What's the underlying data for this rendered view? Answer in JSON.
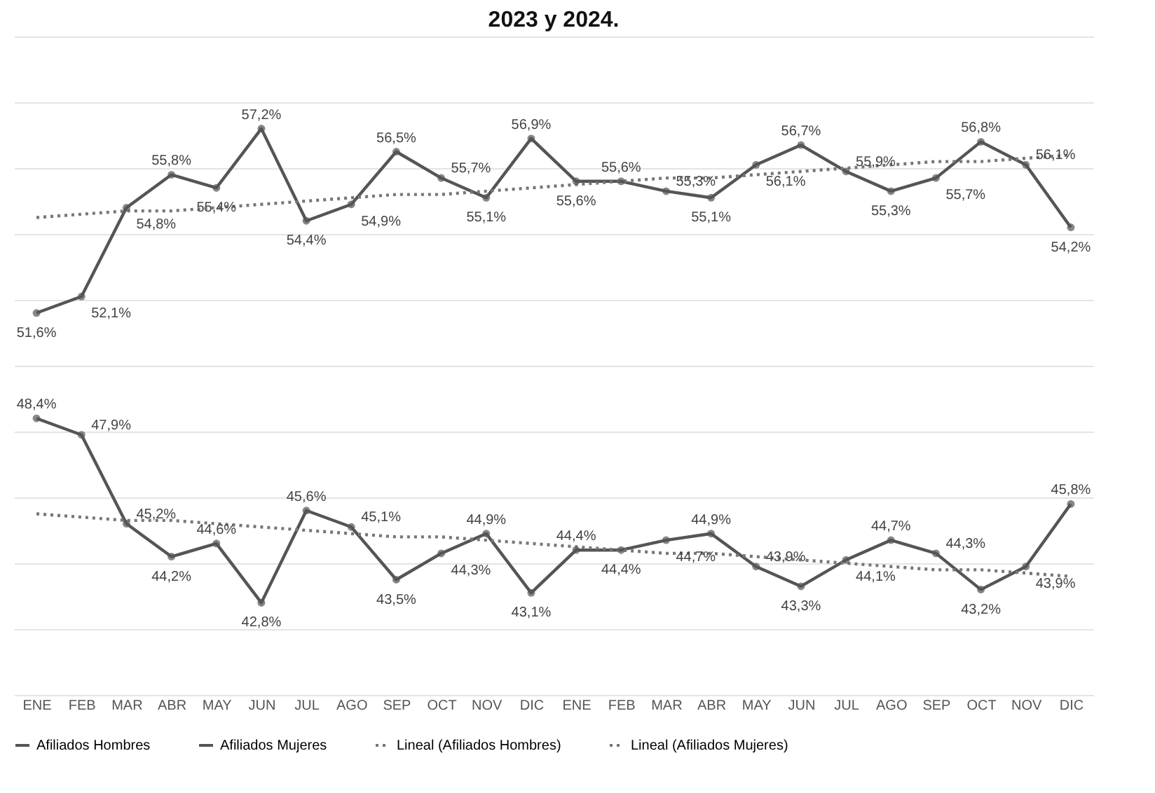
{
  "chart_data": {
    "type": "line",
    "title": "2023 y 2024.",
    "categories": [
      "ENE",
      "FEB",
      "MAR",
      "ABR",
      "MAY",
      "JUN",
      "JUL",
      "AGO",
      "SEP",
      "OCT",
      "NOV",
      "DIC",
      "ENE",
      "FEB",
      "MAR",
      "ABR",
      "MAY",
      "JUN",
      "JUL",
      "AGO",
      "SEP",
      "OCT",
      "NOV",
      "DIC"
    ],
    "series": [
      {
        "name": "Afiliados Hombres",
        "color": "#555555",
        "marker": "circle",
        "line_style": "solid",
        "values": [
          51.6,
          52.1,
          54.8,
          55.8,
          55.4,
          57.2,
          54.4,
          54.9,
          56.5,
          55.7,
          55.1,
          56.9,
          55.6,
          55.6,
          55.3,
          55.1,
          56.1,
          56.7,
          55.9,
          55.3,
          55.7,
          56.8,
          56.1,
          54.2
        ],
        "value_labels": [
          "51,6%",
          "52,1%",
          "54,8%",
          "55,8%",
          "55,4%",
          "57,2%",
          "54,4%",
          "54,9%",
          "56,5%",
          "55,7%",
          "55,1%",
          "56,9%",
          "55,6%",
          "55,6%",
          "55,3%",
          "55,1%",
          "56,1%",
          "56,7%",
          "55,9%",
          "55,3%",
          "55,7%",
          "56,8%",
          "56,1%",
          "54,2%"
        ]
      },
      {
        "name": "Afiliados Mujeres",
        "color": "#555555",
        "marker": "circle",
        "line_style": "solid",
        "values": [
          48.4,
          47.9,
          45.2,
          44.2,
          44.6,
          42.8,
          45.6,
          45.1,
          43.5,
          44.3,
          44.9,
          43.1,
          44.4,
          44.4,
          44.7,
          44.9,
          43.9,
          43.3,
          44.1,
          44.7,
          44.3,
          43.2,
          43.9,
          45.8
        ],
        "value_labels": [
          "48,4%",
          "47,9%",
          "45,2%",
          "44,2%",
          "44,6%",
          "42,8%",
          "45,6%",
          "45,1%",
          "43,5%",
          "44,3%",
          "44,9%",
          "43,1%",
          "44,4%",
          "44,4%",
          "44,7%",
          "44,9%",
          "43,9%",
          "43,3%",
          "44,1%",
          "44,7%",
          "44,3%",
          "43,2%",
          "43,9%",
          "45,8%"
        ]
      },
      {
        "name": "Lineal (Afiliados Hombres)",
        "color": "#777777",
        "marker": "none",
        "line_style": "dotted",
        "values": [
          54.5,
          54.6,
          54.7,
          54.7,
          54.8,
          54.9,
          55.0,
          55.1,
          55.2,
          55.2,
          55.3,
          55.4,
          55.5,
          55.6,
          55.7,
          55.7,
          55.8,
          55.9,
          56.0,
          56.1,
          56.2,
          56.2,
          56.3,
          56.4
        ]
      },
      {
        "name": "Lineal (Afiliados Mujeres)",
        "color": "#777777",
        "marker": "none",
        "line_style": "dotted",
        "values": [
          45.5,
          45.4,
          45.3,
          45.3,
          45.2,
          45.1,
          45.0,
          44.9,
          44.8,
          44.8,
          44.7,
          44.6,
          44.5,
          44.4,
          44.3,
          44.3,
          44.2,
          44.1,
          44.0,
          43.9,
          43.8,
          43.8,
          43.7,
          43.6
        ]
      }
    ],
    "ylim": [
      40,
      60
    ],
    "yticks": [
      {
        "value": 40,
        "label": null
      },
      {
        "value": 42,
        "label": null
      },
      {
        "value": 44,
        "label": null
      },
      {
        "value": 46,
        "label": null
      },
      {
        "value": 48,
        "label": null
      },
      {
        "value": 50,
        "label": null
      },
      {
        "value": 52,
        "label": null
      },
      {
        "value": 54,
        "label": null
      },
      {
        "value": 56,
        "label": null
      },
      {
        "value": 58,
        "label": null
      },
      {
        "value": 60,
        "label": null
      }
    ],
    "tick_labels": "x",
    "grid": "y",
    "legend": "bottom"
  }
}
